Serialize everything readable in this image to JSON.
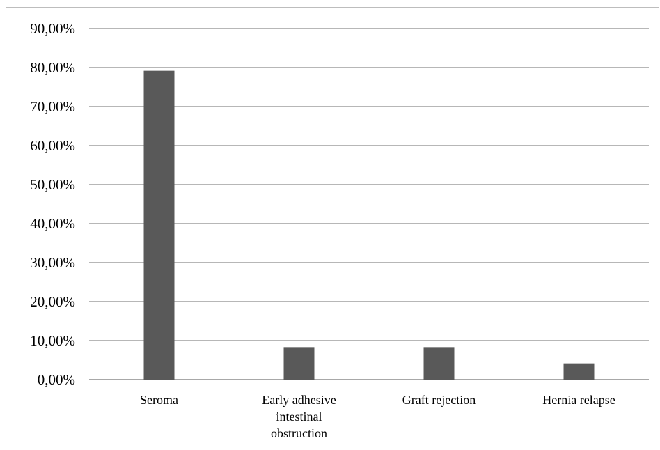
{
  "chart_data": {
    "type": "bar",
    "categories": [
      "Seroma",
      "Early adhesive intestinal obstruction",
      "Graft rejection",
      "Hernia relapse"
    ],
    "category_label_lines": [
      [
        "Seroma"
      ],
      [
        "Early adhesive",
        "intestinal",
        "obstruction"
      ],
      [
        "Graft rejection"
      ],
      [
        "Hernia relapse"
      ]
    ],
    "values": [
      79.17,
      8.33,
      8.33,
      4.17
    ],
    "ylim": [
      0,
      90
    ],
    "yticks": [
      0,
      10,
      20,
      30,
      40,
      50,
      60,
      70,
      80,
      90
    ],
    "ytick_labels": [
      "0,00%",
      "10,00%",
      "20,00%",
      "30,00%",
      "40,00%",
      "50,00%",
      "60,00%",
      "70,00%",
      "80,00%",
      "90,00%"
    ],
    "grid": true,
    "bar_color": "#595959",
    "grid_color": "#8c8c8c",
    "title": "",
    "xlabel": "",
    "ylabel": ""
  }
}
